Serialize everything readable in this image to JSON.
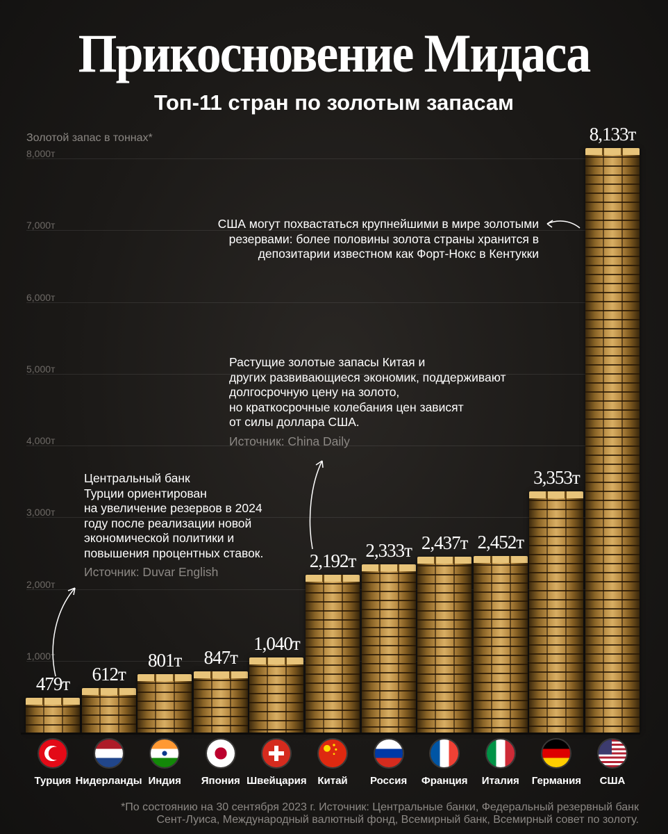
{
  "title": "Прикосновение Мидаса",
  "subtitle": "Топ-11 стран по золотым запасам",
  "chart_data": {
    "type": "bar",
    "ylabel": "Золотой запас в тоннах*",
    "ylim": [
      0,
      8200
    ],
    "yticks": [
      {
        "value": 1000,
        "label": "1,000т"
      },
      {
        "value": 2000,
        "label": "2,000т"
      },
      {
        "value": 3000,
        "label": "3,000т"
      },
      {
        "value": 4000,
        "label": "4,000т"
      },
      {
        "value": 5000,
        "label": "5,000т"
      },
      {
        "value": 6000,
        "label": "6,000т"
      },
      {
        "value": 7000,
        "label": "7,000т"
      },
      {
        "value": 8000,
        "label": "8,000т"
      }
    ],
    "categories": [
      "Турция",
      "Нидерланды",
      "Индия",
      "Япония",
      "Швейцария",
      "Китай",
      "Россия",
      "Франция",
      "Италия",
      "Германия",
      "США"
    ],
    "values": [
      479,
      612,
      801,
      847,
      1040,
      2192,
      2333,
      2437,
      2452,
      3353,
      8133
    ],
    "value_labels": [
      "479т",
      "612т",
      "801т",
      "847т",
      "1,040т",
      "2,192т",
      "2,333т",
      "2,437т",
      "2,452т",
      "3,353т",
      "8,133т"
    ],
    "flags": [
      "turkey-flag",
      "netherlands-flag",
      "india-flag",
      "japan-flag",
      "switzerland-flag",
      "china-flag",
      "russia-flag",
      "france-flag",
      "italy-flag",
      "germany-flag",
      "usa-flag"
    ]
  },
  "annotations": {
    "usa": "США могут похвастаться крупнейшими в мире золотыми резервами: более половины золота страны хранится в депозитарии известном как Форт-Нокс в Кентукки",
    "china_lines": [
      "Растущие золотые запасы Китая и",
      "других развивающиеся экономик, поддерживают",
      "долгосрочную цену на золото,",
      "но краткосрочные колебания цен зависят",
      "от силы доллара США."
    ],
    "china_source": "Источник: China Daily",
    "turkey_lines": [
      "Центральный банк",
      "Турции ориентирован",
      "на увеличение резервов в 2024",
      "году после реализации новой",
      "экономической политики и",
      "повышения процентных ставок."
    ],
    "turkey_source": "Источник: Duvar English"
  },
  "footnote": {
    "line1": "*По состоянию на 30 сентября 2023 г. Источник: Центральные банки, Федеральный резервный банк",
    "line2": "Сент-Луиса, Международный валютный фонд, Всемирный банк, Всемирный совет по золоту."
  },
  "colors": {
    "gold": "#c9a057",
    "background": "#1b1917",
    "muted": "#8c8884"
  }
}
